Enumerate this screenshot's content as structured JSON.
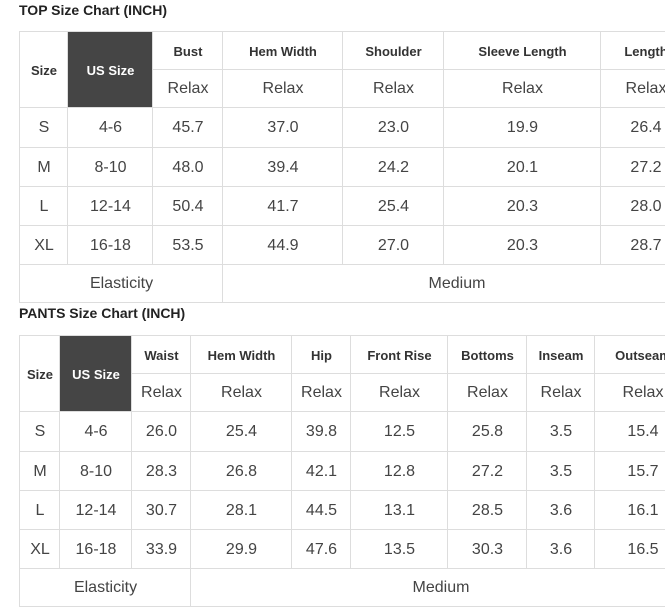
{
  "top": {
    "title": "TOP Size Chart (INCH)",
    "header": [
      "Size",
      "US Size",
      "Bust",
      "Hem Width",
      "Shoulder",
      "Sleeve Length",
      "Length"
    ],
    "subheader": [
      "Relax",
      "Relax",
      "Relax",
      "Relax",
      "Relax"
    ],
    "rows": [
      [
        "S",
        "4-6",
        "45.7",
        "37.0",
        "23.0",
        "19.9",
        "26.4"
      ],
      [
        "M",
        "8-10",
        "48.0",
        "39.4",
        "24.2",
        "20.1",
        "27.2"
      ],
      [
        "L",
        "12-14",
        "50.4",
        "41.7",
        "25.4",
        "20.3",
        "28.0"
      ],
      [
        "XL",
        "16-18",
        "53.5",
        "44.9",
        "27.0",
        "20.3",
        "28.7"
      ]
    ],
    "footer": [
      "Elasticity",
      "Medium"
    ]
  },
  "pants": {
    "title": "PANTS Size Chart (INCH)",
    "header": [
      "Size",
      "US Size",
      "Waist",
      "Hem Width",
      "Hip",
      "Front Rise",
      "Bottoms",
      "Inseam",
      "Outseam"
    ],
    "subheader": [
      "Relax",
      "Relax",
      "Relax",
      "Relax",
      "Relax",
      "Relax",
      "Relax"
    ],
    "rows": [
      [
        "S",
        "4-6",
        "26.0",
        "25.4",
        "39.8",
        "12.5",
        "25.8",
        "3.5",
        "15.4"
      ],
      [
        "M",
        "8-10",
        "28.3",
        "26.8",
        "42.1",
        "12.8",
        "27.2",
        "3.5",
        "15.7"
      ],
      [
        "L",
        "12-14",
        "30.7",
        "28.1",
        "44.5",
        "13.1",
        "28.5",
        "3.6",
        "16.1"
      ],
      [
        "XL",
        "16-18",
        "33.9",
        "29.9",
        "47.6",
        "13.5",
        "30.3",
        "3.6",
        "16.5"
      ]
    ],
    "footer": [
      "Elasticity",
      "Medium"
    ]
  }
}
